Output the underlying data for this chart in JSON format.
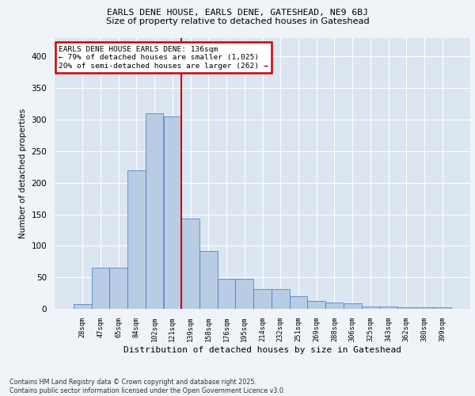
{
  "title1": "EARLS DENE HOUSE, EARLS DENE, GATESHEAD, NE9 6BJ",
  "title2": "Size of property relative to detached houses in Gateshead",
  "xlabel": "Distribution of detached houses by size in Gateshead",
  "ylabel": "Number of detached properties",
  "categories": [
    "28sqm",
    "47sqm",
    "65sqm",
    "84sqm",
    "102sqm",
    "121sqm",
    "139sqm",
    "158sqm",
    "176sqm",
    "195sqm",
    "214sqm",
    "232sqm",
    "251sqm",
    "269sqm",
    "288sqm",
    "306sqm",
    "325sqm",
    "343sqm",
    "362sqm",
    "380sqm",
    "399sqm"
  ],
  "values": [
    8,
    65,
    65,
    220,
    310,
    305,
    143,
    92,
    48,
    48,
    32,
    32,
    20,
    13,
    10,
    9,
    4,
    4,
    2,
    2,
    3
  ],
  "bar_color": "#b8cce4",
  "bar_edge_color": "#4472c4",
  "background_color": "#dce6f1",
  "grid_color": "#ffffff",
  "annotation_text": "EARLS DENE HOUSE EARLS DENE: 136sqm\n← 79% of detached houses are smaller (1,025)\n20% of semi-detached houses are larger (262) →",
  "annotation_box_color": "#ffffff",
  "annotation_box_edge": "#cc0000",
  "footer_text": "Contains HM Land Registry data © Crown copyright and database right 2025.\nContains public sector information licensed under the Open Government Licence v3.0.",
  "fig_facecolor": "#f0f4f8",
  "ylim": [
    0,
    430
  ],
  "yticks": [
    0,
    50,
    100,
    150,
    200,
    250,
    300,
    350,
    400
  ]
}
